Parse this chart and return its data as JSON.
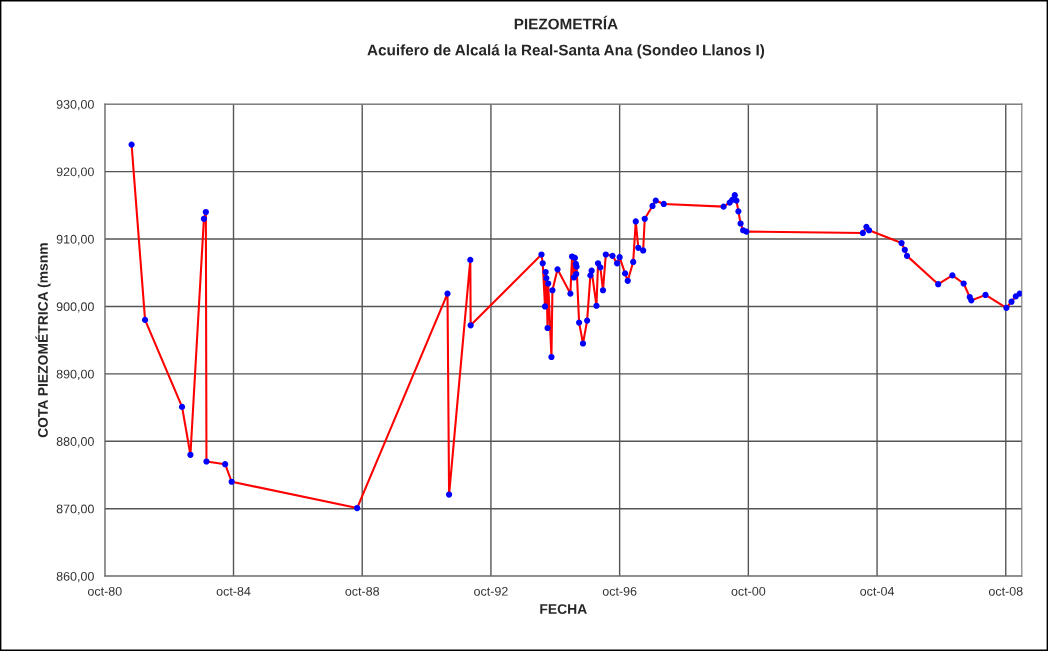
{
  "chart_data": {
    "type": "line",
    "title": "PIEZOMETRÍA",
    "subtitle": "Acuifero de Alcalá la Real-Santa Ana (Sondeo Llanos I)",
    "xlabel": "FECHA",
    "ylabel": "COTA PIEZOMÉTRICA (msnm",
    "series": [
      {
        "color": "#ff0000",
        "colors": [
          "#0000ff",
          "#0000ff",
          "#0000ff",
          "#0000ff",
          "#0000ff",
          "#0000ff",
          "#0000ff",
          "#0000ff",
          "#0000ff",
          "#0000ff",
          "#0000ff",
          "#0000ff",
          "#0000ff",
          "#0000ff",
          "#0000ff",
          "#0000ff",
          "#0000ff",
          "#0000ff",
          "#0000ff",
          "#0000ff",
          "#0000ff",
          "#0000ff",
          "#0000ff",
          "#0000ff",
          "#0000ff",
          "#0000ff",
          "#0000ff",
          "#0000ff",
          "#0000ff",
          "#0000ff",
          "#0000ff",
          "#0000ff",
          "#0000ff",
          "#0000ff",
          "#0000ff",
          "#0000ff",
          "#0000ff",
          "#0000ff",
          "#0000ff",
          "#0000ff",
          "#0000ff",
          "#0000ff",
          "#0000ff",
          "#0000ff",
          "#0000ff",
          "#0000ff",
          "#0000ff",
          "#0000ff",
          "#0000ff",
          "#0000ff",
          "#0000ff",
          "#0000ff",
          "#0000ff",
          "#0000ff",
          "#0000ff",
          "#0000ff",
          "#0000ff",
          "#0000ff",
          "#0000ff",
          "#0000ff",
          "#0000ff",
          "#0000ff",
          "#0000ff",
          "#0000ff",
          "#0000ff",
          "#0000ff",
          "#0000ff",
          "#0000ff",
          "#0000ff",
          "#0000ff",
          "#0000ff",
          "#0000ff",
          "#0000ff",
          "#0000ff",
          "#0000ff",
          "#0000ff",
          "#0000ff",
          "#0000ff",
          "#0000ff"
        ],
        "x": [
          "1981-08-01",
          "1982-01-01",
          "1983-02-25",
          "1983-05-31",
          "1983-10-31",
          "1983-11-22",
          "1983-11-29",
          "1984-06-28",
          "1984-09-10",
          "1988-08-04",
          "1991-05-27",
          "1991-06-14",
          "1992-02-10",
          "1992-02-14",
          "1994-04-28",
          "1994-05-12",
          "1994-06-07",
          "1994-06-14",
          "1994-06-22",
          "1994-07-06",
          "1994-07-13",
          "1994-08-19",
          "1994-08-30",
          "1994-10-27",
          "1995-03-22",
          "1995-04-10",
          "1995-05-01",
          "1995-05-12",
          "1995-05-23",
          "1995-05-27",
          "1995-05-31",
          "1995-06-29",
          "1995-08-12",
          "1995-09-28",
          "1995-11-04",
          "1995-11-18",
          "1996-01-12",
          "1996-01-30",
          "1996-02-25",
          "1996-03-26",
          "1996-04-27",
          "1996-07-12",
          "1996-09-02",
          "1996-10-01",
          "1996-12-02",
          "1997-01-01",
          "1997-03-04",
          "1997-04-02",
          "1997-05-01",
          "1997-06-25",
          "1997-07-13",
          "1997-10-09",
          "1997-11-15",
          "1998-02-14",
          "1999-12-25",
          "2000-03-03",
          "2000-04-01",
          "2000-04-30",
          "2000-05-19",
          "2000-06-10",
          "2000-07-05",
          "2000-08-03",
          "2000-09-09",
          "2004-04-23",
          "2004-06-02",
          "2004-07-02",
          "2005-07-06",
          "2005-08-12",
          "2005-09-06",
          "2006-08-26",
          "2007-02-03",
          "2007-06-11",
          "2007-08-19",
          "2007-09-06",
          "2008-02-14",
          "2008-10-08",
          "2008-12-05",
          "2009-01-23",
          "2009-03-08"
        ],
        "values": [
          924.0,
          898.0,
          885.1,
          878.0,
          913.0,
          914.0,
          877.0,
          876.6,
          874.0,
          870.1,
          901.9,
          872.1,
          906.9,
          897.2,
          907.7,
          906.4,
          900.0,
          905.1,
          904.2,
          896.8,
          903.4,
          892.5,
          902.4,
          905.5,
          901.9,
          907.4,
          904.3,
          907.2,
          906.3,
          904.8,
          905.9,
          897.6,
          894.5,
          897.9,
          904.6,
          905.3,
          900.1,
          906.4,
          905.8,
          902.4,
          907.7,
          907.5,
          906.4,
          907.3,
          904.9,
          903.8,
          906.6,
          912.6,
          908.7,
          908.3,
          913.0,
          914.9,
          915.7,
          915.2,
          914.8,
          915.4,
          915.8,
          916.5,
          915.7,
          914.1,
          912.3,
          911.3,
          911.1,
          910.9,
          911.8,
          911.3,
          909.4,
          908.4,
          907.5,
          903.3,
          904.6,
          903.4,
          901.4,
          900.9,
          901.7,
          899.8,
          900.7,
          901.5,
          901.9
        ]
      }
    ],
    "marker": "circle",
    "line_style": "solid",
    "grid": true,
    "xlim": [
      "1980-10-01",
      "2009-04-01"
    ],
    "xticks": [
      {
        "value": "1980-10-01",
        "label": "oct-80"
      },
      {
        "value": "1984-10-01",
        "label": "oct-84"
      },
      {
        "value": "1988-10-01",
        "label": "oct-88"
      },
      {
        "value": "1992-10-01",
        "label": "oct-92"
      },
      {
        "value": "1996-10-01",
        "label": "oct-96"
      },
      {
        "value": "2000-10-01",
        "label": "oct-00"
      },
      {
        "value": "2004-10-01",
        "label": "oct-04"
      },
      {
        "value": "2008-10-01",
        "label": "oct-08"
      }
    ],
    "ylim": [
      860,
      930
    ],
    "yticks": [
      {
        "value": 860,
        "label": "860,00"
      },
      {
        "value": 870,
        "label": "870,00"
      },
      {
        "value": 880,
        "label": "880,00"
      },
      {
        "value": 890,
        "label": "890,00"
      },
      {
        "value": 900,
        "label": "900,00"
      },
      {
        "value": 910,
        "label": "910,00"
      },
      {
        "value": 920,
        "label": "920,00"
      },
      {
        "value": 930,
        "label": "930,00"
      }
    ]
  }
}
